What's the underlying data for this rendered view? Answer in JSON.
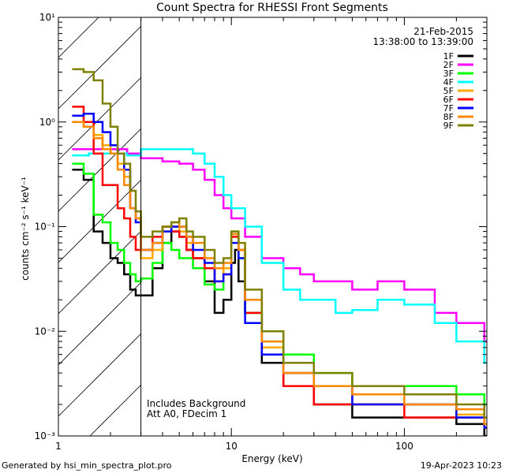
{
  "chart_data": {
    "type": "line",
    "title": "Count Spectra for RHESSI Front Segments",
    "xlabel": "Energy (keV)",
    "ylabel": "counts cm⁻² s⁻¹ keV⁻¹",
    "xscale": "log",
    "yscale": "log",
    "xlim": [
      1,
      300
    ],
    "ylim": [
      0.001,
      10
    ],
    "x_ticks": [
      {
        "value": 1,
        "label": "1"
      },
      {
        "value": 10,
        "label": "10"
      },
      {
        "value": 100,
        "label": "100"
      }
    ],
    "y_ticks": [
      {
        "value": 0.001,
        "label": "10⁻³"
      },
      {
        "value": 0.01,
        "label": "10⁻²"
      },
      {
        "value": 0.1,
        "label": "10⁻¹"
      },
      {
        "value": 1,
        "label": "10⁰"
      },
      {
        "value": 10,
        "label": "10¹"
      }
    ],
    "date": "21-Feb-2015",
    "time_range": "13:38:00 to 13:39:00",
    "annotations": [
      "Includes Background",
      "Att A0, FDecim 1"
    ],
    "hatched_region": {
      "x_from": 1,
      "x_to": 3
    },
    "series": [
      {
        "name": "1F",
        "color": "#000000",
        "x": [
          1.2,
          1.4,
          1.6,
          1.8,
          2.0,
          2.2,
          2.4,
          2.6,
          2.8,
          3.0,
          3.5,
          4.0,
          4.5,
          5.0,
          5.5,
          6.0,
          7.0,
          8.0,
          9.0,
          10.0,
          10.5,
          11.0,
          12.0,
          15.0,
          20.0,
          30.0,
          50.0,
          100.0,
          200.0,
          290.0
        ],
        "y": [
          0.35,
          0.28,
          0.09,
          0.07,
          0.05,
          0.045,
          0.035,
          0.025,
          0.022,
          0.022,
          0.04,
          0.07,
          0.09,
          0.08,
          0.06,
          0.05,
          0.03,
          0.015,
          0.02,
          0.045,
          0.06,
          0.03,
          0.015,
          0.005,
          0.003,
          0.002,
          0.0015,
          0.0015,
          0.0013,
          0.001
        ]
      },
      {
        "name": "2F",
        "color": "#ff00ff",
        "x": [
          1.2,
          1.5,
          2.0,
          2.5,
          3.0,
          4.0,
          5.0,
          6.0,
          7.0,
          8.0,
          9.0,
          10.0,
          12.0,
          15.0,
          20.0,
          25.0,
          30.0,
          40.0,
          50.0,
          70.0,
          100.0,
          150.0,
          200.0,
          290.0
        ],
        "y": [
          0.55,
          0.55,
          0.55,
          0.5,
          0.45,
          0.42,
          0.4,
          0.35,
          0.28,
          0.2,
          0.15,
          0.12,
          0.08,
          0.05,
          0.04,
          0.035,
          0.03,
          0.03,
          0.025,
          0.03,
          0.025,
          0.015,
          0.012,
          0.008
        ]
      },
      {
        "name": "3F",
        "color": "#00ff00",
        "x": [
          1.2,
          1.4,
          1.6,
          1.8,
          2.0,
          2.2,
          2.4,
          2.6,
          2.8,
          3.0,
          3.5,
          4.0,
          4.5,
          5.0,
          5.5,
          6.0,
          7.0,
          8.0,
          9.0,
          10.0,
          11.0,
          12.0,
          15.0,
          20.0,
          30.0,
          50.0,
          100.0,
          200.0,
          290.0
        ],
        "y": [
          0.4,
          0.32,
          0.13,
          0.11,
          0.07,
          0.06,
          0.045,
          0.035,
          0.03,
          0.032,
          0.045,
          0.07,
          0.06,
          0.05,
          0.05,
          0.04,
          0.028,
          0.025,
          0.04,
          0.09,
          0.05,
          0.015,
          0.008,
          0.006,
          0.004,
          0.003,
          0.003,
          0.0025,
          0.002
        ]
      },
      {
        "name": "4F",
        "color": "#00ffff",
        "x": [
          1.2,
          1.5,
          2.0,
          2.5,
          3.0,
          4.0,
          5.0,
          6.0,
          7.0,
          8.0,
          9.0,
          10.0,
          12.0,
          15.0,
          20.0,
          25.0,
          30.0,
          40.0,
          50.0,
          70.0,
          100.0,
          150.0,
          200.0,
          290.0
        ],
        "y": [
          0.48,
          0.5,
          0.5,
          0.48,
          0.55,
          0.55,
          0.55,
          0.5,
          0.4,
          0.3,
          0.2,
          0.15,
          0.1,
          0.045,
          0.025,
          0.02,
          0.02,
          0.015,
          0.016,
          0.02,
          0.018,
          0.012,
          0.008,
          0.005
        ]
      },
      {
        "name": "5F",
        "color": "#ffaa00",
        "x": [
          1.2,
          1.4,
          1.6,
          1.8,
          2.0,
          2.2,
          2.4,
          2.6,
          2.8,
          3.0,
          3.5,
          4.0,
          4.5,
          5.0,
          5.5,
          6.0,
          7.0,
          8.0,
          9.0,
          10.0,
          11.0,
          12.0,
          15.0,
          20.0,
          30.0,
          50.0,
          100.0,
          200.0,
          290.0
        ],
        "y": [
          1.0,
          0.9,
          0.75,
          0.6,
          0.5,
          0.4,
          0.3,
          0.15,
          0.12,
          0.05,
          0.06,
          0.09,
          0.1,
          0.09,
          0.07,
          0.05,
          0.04,
          0.03,
          0.04,
          0.08,
          0.06,
          0.02,
          0.007,
          0.004,
          0.003,
          0.002,
          0.002,
          0.0016,
          0.0012
        ]
      },
      {
        "name": "6F",
        "color": "#ff0000",
        "x": [
          1.2,
          1.4,
          1.6,
          1.8,
          2.0,
          2.2,
          2.4,
          2.6,
          2.8,
          3.0,
          3.5,
          4.0,
          4.5,
          5.0,
          5.5,
          6.0,
          7.0,
          8.0,
          9.0,
          10.0,
          11.0,
          12.0,
          15.0,
          20.0,
          30.0,
          50.0,
          100.0,
          200.0,
          290.0
        ],
        "y": [
          1.4,
          1.0,
          0.5,
          0.25,
          0.25,
          0.15,
          0.12,
          0.08,
          0.06,
          0.06,
          0.08,
          0.1,
          0.09,
          0.08,
          0.06,
          0.05,
          0.04,
          0.03,
          0.035,
          0.08,
          0.06,
          0.015,
          0.006,
          0.003,
          0.002,
          0.002,
          0.0015,
          0.0015,
          0.0012
        ]
      },
      {
        "name": "7F",
        "color": "#0000ff",
        "x": [
          1.2,
          1.4,
          1.6,
          1.8,
          2.0,
          2.2,
          2.4,
          2.6,
          2.8,
          3.0,
          3.5,
          4.0,
          4.5,
          5.0,
          5.5,
          6.0,
          7.0,
          8.0,
          9.0,
          10.0,
          11.0,
          12.0,
          15.0,
          20.0,
          30.0,
          50.0,
          100.0,
          200.0,
          290.0
        ],
        "y": [
          1.15,
          1.2,
          1.0,
          0.8,
          0.6,
          0.5,
          0.35,
          0.15,
          0.11,
          0.06,
          0.07,
          0.09,
          0.1,
          0.1,
          0.08,
          0.06,
          0.045,
          0.03,
          0.035,
          0.07,
          0.05,
          0.012,
          0.006,
          0.004,
          0.003,
          0.002,
          0.002,
          0.0015,
          0.0012
        ]
      },
      {
        "name": "8F",
        "color": "#ff8800",
        "x": [
          1.2,
          1.4,
          1.6,
          1.8,
          2.0,
          2.2,
          2.4,
          2.6,
          2.8,
          3.0,
          3.5,
          4.0,
          4.5,
          5.0,
          5.5,
          6.0,
          7.0,
          8.0,
          9.0,
          10.0,
          11.0,
          12.0,
          15.0,
          20.0,
          30.0,
          50.0,
          100.0,
          200.0,
          290.0
        ],
        "y": [
          1.0,
          0.9,
          0.7,
          0.55,
          0.5,
          0.35,
          0.25,
          0.15,
          0.12,
          0.06,
          0.07,
          0.1,
          0.11,
          0.1,
          0.08,
          0.07,
          0.05,
          0.04,
          0.045,
          0.085,
          0.06,
          0.02,
          0.008,
          0.004,
          0.003,
          0.0025,
          0.002,
          0.0018,
          0.0013
        ]
      },
      {
        "name": "9F",
        "color": "#808000",
        "x": [
          1.2,
          1.4,
          1.6,
          1.8,
          2.0,
          2.2,
          2.4,
          2.6,
          2.8,
          3.0,
          3.5,
          4.0,
          4.5,
          5.0,
          5.5,
          6.0,
          7.0,
          8.0,
          9.0,
          10.0,
          11.0,
          12.0,
          15.0,
          20.0,
          30.0,
          50.0,
          100.0,
          200.0,
          290.0
        ],
        "y": [
          3.2,
          3.0,
          2.5,
          1.5,
          0.9,
          0.5,
          0.4,
          0.22,
          0.14,
          0.08,
          0.09,
          0.1,
          0.11,
          0.12,
          0.09,
          0.08,
          0.06,
          0.045,
          0.05,
          0.09,
          0.07,
          0.025,
          0.01,
          0.005,
          0.004,
          0.003,
          0.0025,
          0.002,
          0.0015
        ]
      }
    ]
  },
  "footer": {
    "generated_by": "Generated by hsi_min_spectra_plot.pro",
    "timestamp": "19-Apr-2023 10:23"
  }
}
